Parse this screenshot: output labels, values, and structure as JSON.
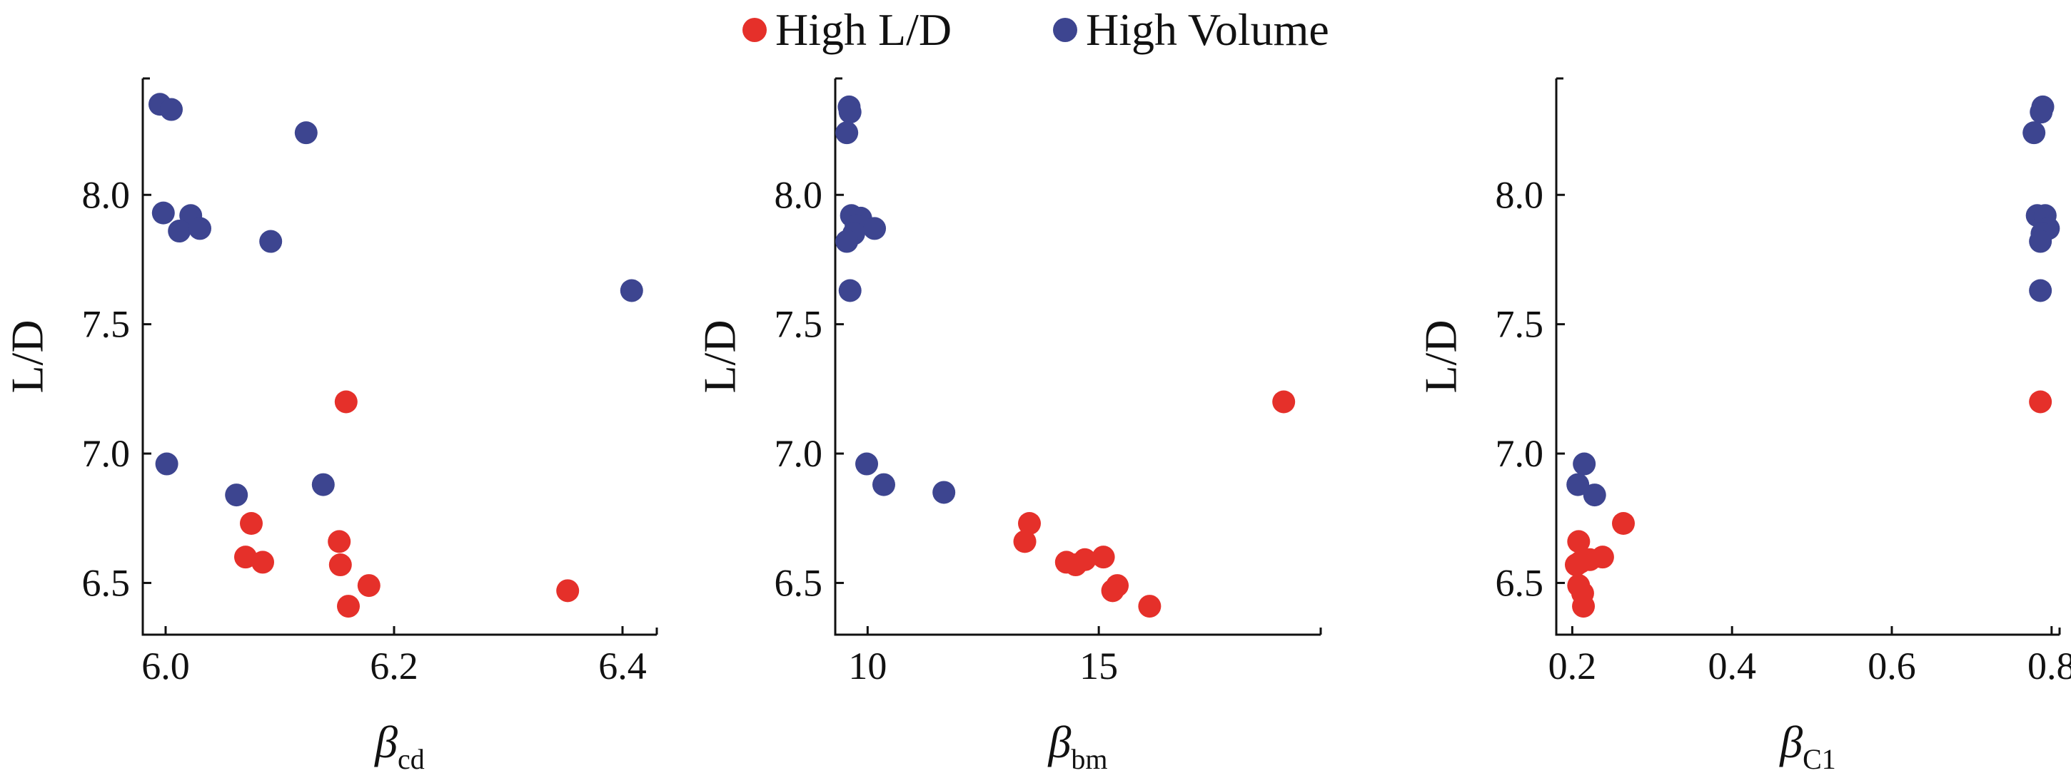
{
  "legend": [
    {
      "label": "High L/D",
      "color": "#e5302a"
    },
    {
      "label": "High Volume",
      "color": "#3d4590"
    }
  ],
  "chart_data": [
    {
      "type": "scatter",
      "xlabel": "β",
      "xlabel_sub": "cd",
      "ylabel": "L/D",
      "xlim": [
        5.98,
        6.43
      ],
      "ylim": [
        6.3,
        8.45
      ],
      "xticks": [
        6.0,
        6.2,
        6.4
      ],
      "xtick_labels": [
        "6.0",
        "6.2",
        "6.4"
      ],
      "yticks": [
        6.5,
        7.0,
        7.5,
        8.0
      ],
      "ytick_labels": [
        "6.5",
        "7.0",
        "7.5",
        "8.0"
      ],
      "series": [
        {
          "name": "High Volume",
          "color": "#3d4590",
          "points": [
            [
              5.995,
              8.35
            ],
            [
              6.005,
              8.33
            ],
            [
              6.123,
              8.24
            ],
            [
              5.998,
              7.93
            ],
            [
              6.022,
              7.92
            ],
            [
              6.012,
              7.86
            ],
            [
              6.03,
              7.87
            ],
            [
              6.092,
              7.82
            ],
            [
              6.408,
              7.63
            ],
            [
              6.001,
              6.96
            ],
            [
              6.062,
              6.84
            ],
            [
              6.138,
              6.88
            ]
          ]
        },
        {
          "name": "High L/D",
          "color": "#e5302a",
          "points": [
            [
              6.158,
              7.2
            ],
            [
              6.075,
              6.73
            ],
            [
              6.152,
              6.66
            ],
            [
              6.07,
              6.6
            ],
            [
              6.085,
              6.58
            ],
            [
              6.153,
              6.57
            ],
            [
              6.178,
              6.49
            ],
            [
              6.16,
              6.41
            ],
            [
              6.352,
              6.47
            ]
          ]
        }
      ]
    },
    {
      "type": "scatter",
      "xlabel": "β",
      "xlabel_sub": "bm",
      "ylabel": "L/D",
      "xlim": [
        9.3,
        19.8
      ],
      "ylim": [
        6.3,
        8.45
      ],
      "xticks": [
        10,
        15
      ],
      "xtick_labels": [
        "10",
        "15"
      ],
      "yticks": [
        6.5,
        7.0,
        7.5,
        8.0
      ],
      "ytick_labels": [
        "6.5",
        "7.0",
        "7.5",
        "8.0"
      ],
      "series": [
        {
          "name": "High Volume",
          "color": "#3d4590",
          "points": [
            [
              9.6,
              8.34
            ],
            [
              9.62,
              8.32
            ],
            [
              9.55,
              8.24
            ],
            [
              9.65,
              7.92
            ],
            [
              9.85,
              7.91
            ],
            [
              9.75,
              7.88
            ],
            [
              10.15,
              7.87
            ],
            [
              9.7,
              7.85
            ],
            [
              9.55,
              7.82
            ],
            [
              9.62,
              7.63
            ],
            [
              9.98,
              6.96
            ],
            [
              10.35,
              6.88
            ],
            [
              11.65,
              6.85
            ]
          ]
        },
        {
          "name": "High L/D",
          "color": "#e5302a",
          "points": [
            [
              19.0,
              7.2
            ],
            [
              13.5,
              6.73
            ],
            [
              13.4,
              6.66
            ],
            [
              15.1,
              6.6
            ],
            [
              14.7,
              6.59
            ],
            [
              14.3,
              6.58
            ],
            [
              14.5,
              6.57
            ],
            [
              15.4,
              6.49
            ],
            [
              15.3,
              6.47
            ],
            [
              16.1,
              6.41
            ]
          ]
        }
      ]
    },
    {
      "type": "scatter",
      "xlabel": "β",
      "xlabel_sub": "C1",
      "ylabel": "L/D",
      "xlim": [
        0.18,
        0.81
      ],
      "ylim": [
        6.3,
        8.45
      ],
      "xticks": [
        0.2,
        0.4,
        0.6,
        0.8
      ],
      "xtick_labels": [
        "0.2",
        "0.4",
        "0.6",
        "0.8"
      ],
      "yticks": [
        6.5,
        7.0,
        7.5,
        8.0
      ],
      "ytick_labels": [
        "6.5",
        "7.0",
        "7.5",
        "8.0"
      ],
      "series": [
        {
          "name": "High Volume",
          "color": "#3d4590",
          "points": [
            [
              0.789,
              8.34
            ],
            [
              0.787,
              8.32
            ],
            [
              0.778,
              8.24
            ],
            [
              0.782,
              7.92
            ],
            [
              0.792,
              7.92
            ],
            [
              0.796,
              7.87
            ],
            [
              0.788,
              7.85
            ],
            [
              0.786,
              7.82
            ],
            [
              0.786,
              7.63
            ],
            [
              0.215,
              6.96
            ],
            [
              0.207,
              6.88
            ],
            [
              0.228,
              6.84
            ]
          ]
        },
        {
          "name": "High L/D",
          "color": "#e5302a",
          "points": [
            [
              0.786,
              7.2
            ],
            [
              0.264,
              6.73
            ],
            [
              0.208,
              6.66
            ],
            [
              0.238,
              6.6
            ],
            [
              0.222,
              6.59
            ],
            [
              0.21,
              6.58
            ],
            [
              0.205,
              6.57
            ],
            [
              0.208,
              6.49
            ],
            [
              0.213,
              6.46
            ],
            [
              0.214,
              6.41
            ]
          ]
        }
      ]
    }
  ]
}
